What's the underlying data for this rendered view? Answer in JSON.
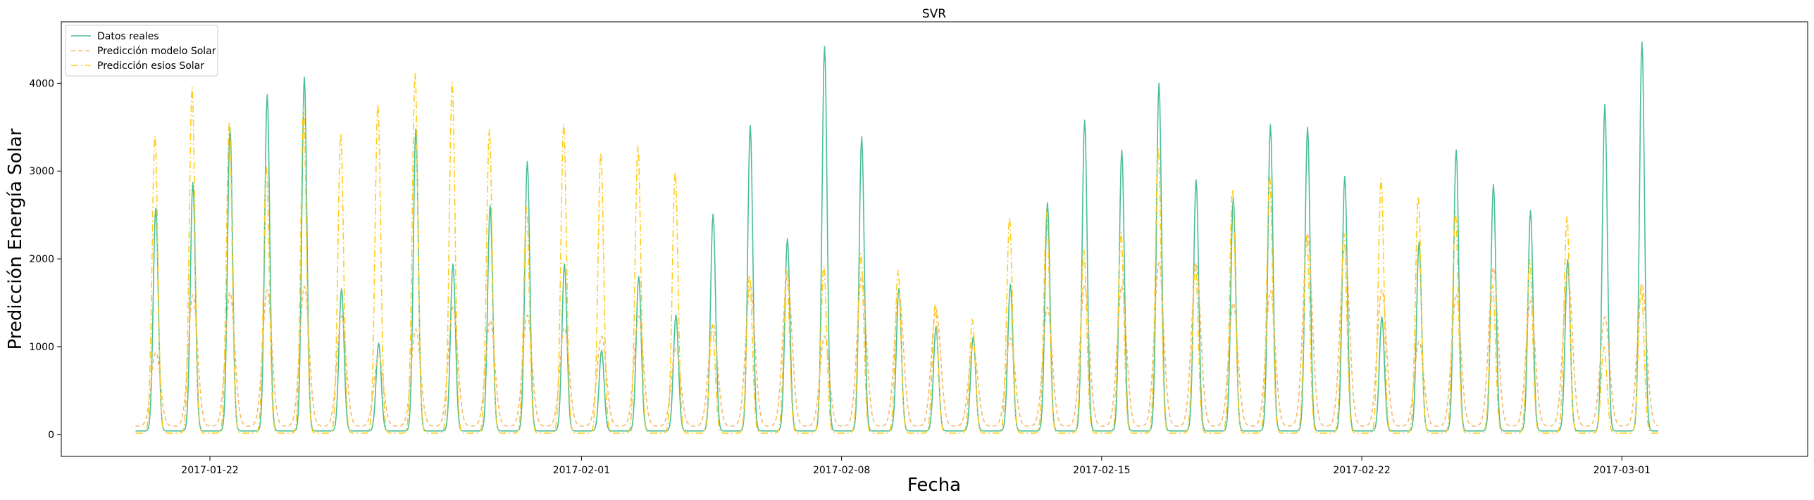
{
  "chart_data": {
    "type": "line",
    "title": "SVR",
    "xlabel": "Fecha",
    "ylabel": "Predicción Energía Solar",
    "x_start": "2017-01-20",
    "x_end": "2017-03-04",
    "xlim": [
      "2017-01-18",
      "2017-03-06"
    ],
    "ylim": [
      -250,
      4700
    ],
    "x_ticks": [
      "2017-01-22",
      "2017-02-01",
      "2017-02-08",
      "2017-02-15",
      "2017-02-22",
      "2017-03-01"
    ],
    "y_ticks": [
      0,
      1000,
      2000,
      3000,
      4000
    ],
    "legend_position": "top-left",
    "grid": false,
    "series": [
      {
        "name": "Datos reales",
        "color": "#4bbf93",
        "style": "solid",
        "daily_peaks": [
          2580,
          2870,
          3500,
          3870,
          4070,
          1660,
          1040,
          3480,
          1940,
          2610,
          3110,
          1940,
          960,
          1800,
          1360,
          2510,
          3520,
          2230,
          4420,
          3390,
          1660,
          1230,
          1110,
          1710,
          2640,
          3580,
          3240,
          4000,
          2900,
          2690,
          3530,
          3500,
          2940,
          1340,
          2190,
          3240,
          2850,
          2550,
          1990,
          3760,
          4470
        ]
      },
      {
        "name": "Predicción modelo Solar",
        "color": "#f7b86a",
        "style": "dashed",
        "daily_peaks": [
          940,
          1590,
          1620,
          1650,
          1690,
          1350,
          900,
          1200,
          1450,
          1300,
          1360,
          1220,
          1120,
          1350,
          980,
          1260,
          1700,
          1800,
          1120,
          1800,
          1600,
          1430,
          1000,
          1100,
          1450,
          1700,
          1690,
          1960,
          1930,
          1500,
          1640,
          2280,
          2150,
          1650,
          1060,
          1600,
          1900,
          1520,
          1850,
          1340,
          1720
        ]
      },
      {
        "name": "Predicción esios Solar",
        "color": "#ffcc1a",
        "style": "dashdot",
        "daily_peaks": [
          3400,
          3950,
          3560,
          3050,
          3720,
          3430,
          3760,
          4110,
          4010,
          3470,
          2590,
          3540,
          3210,
          3280,
          2990,
          1250,
          1820,
          1890,
          1920,
          2060,
          1870,
          1480,
          1310,
          2470,
          2530,
          2100,
          2300,
          3270,
          1950,
          2790,
          2950,
          2280,
          2290,
          2910,
          2710,
          2530,
          1700,
          1990,
          2480,
          1000,
          1700
        ]
      }
    ]
  }
}
